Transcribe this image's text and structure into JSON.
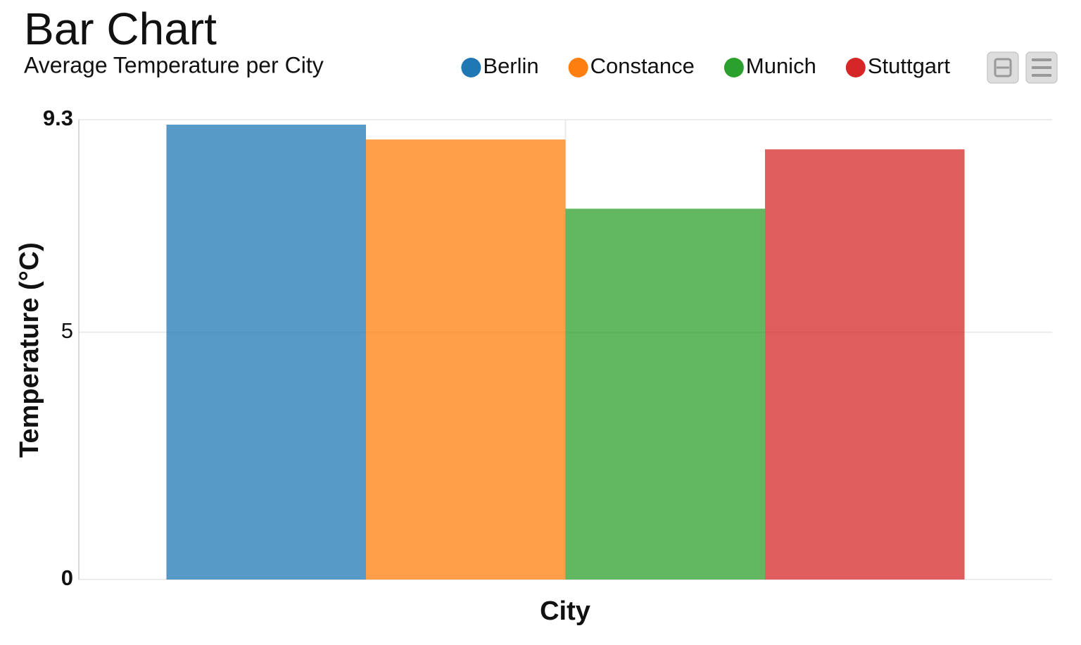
{
  "chart_data": {
    "type": "bar",
    "title": "Bar Chart",
    "subtitle": "Average Temperature per City",
    "x_label": "City",
    "y_label": "Temperature (°C)",
    "categories": [
      null
    ],
    "series": [
      {
        "name": "Berlin",
        "color": "#1f77b4",
        "values": [
          9.2
        ]
      },
      {
        "name": "Constance",
        "color": "#ff7f0e",
        "values": [
          8.9
        ]
      },
      {
        "name": "Munich",
        "color": "#2ca02c",
        "values": [
          7.5
        ]
      },
      {
        "name": "Stuttgart",
        "color": "#d62728",
        "values": [
          8.7
        ]
      }
    ],
    "ylim": [
      0,
      9.3
    ],
    "yticks": [
      0,
      5,
      9.3
    ],
    "grid": true,
    "legend": "top"
  }
}
